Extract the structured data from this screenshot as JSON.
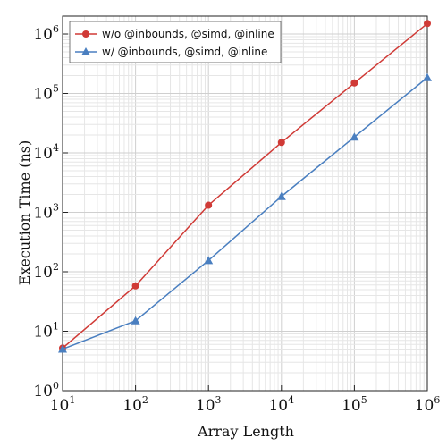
{
  "chart_data": {
    "type": "line",
    "title": "",
    "xlabel": "Array Length",
    "ylabel": "Execution Time (ns)",
    "xscale": "log",
    "yscale": "log",
    "xlim": [
      10,
      1000000
    ],
    "ylim": [
      1,
      2000000
    ],
    "grid": true,
    "legend_position": "top-left",
    "x": [
      10,
      100,
      1000,
      10000,
      100000,
      1000000
    ],
    "x_tick_labels": [
      {
        "base": "10",
        "exp": "1"
      },
      {
        "base": "10",
        "exp": "2"
      },
      {
        "base": "10",
        "exp": "3"
      },
      {
        "base": "10",
        "exp": "4"
      },
      {
        "base": "10",
        "exp": "5"
      },
      {
        "base": "10",
        "exp": "6"
      }
    ],
    "y_tick_labels": [
      {
        "value": 1,
        "base": "10",
        "exp": "0"
      },
      {
        "value": 10,
        "base": "10",
        "exp": "1"
      },
      {
        "value": 100,
        "base": "10",
        "exp": "2"
      },
      {
        "value": 1000,
        "base": "10",
        "exp": "3"
      },
      {
        "value": 10000,
        "base": "10",
        "exp": "4"
      },
      {
        "value": 100000,
        "base": "10",
        "exp": "5"
      },
      {
        "value": 1000000,
        "base": "10",
        "exp": "6"
      }
    ],
    "series": [
      {
        "name": "w/o @inbounds, @simd, @inline",
        "color": "#d03a36",
        "marker": "circle",
        "values": [
          5.2,
          58,
          1320,
          15000,
          150000,
          1500000
        ]
      },
      {
        "name": "w/ @inbounds, @simd, @inline",
        "color": "#4a7fc0",
        "marker": "triangle",
        "values": [
          5.0,
          15,
          155,
          1850,
          18500,
          185000
        ]
      }
    ]
  }
}
